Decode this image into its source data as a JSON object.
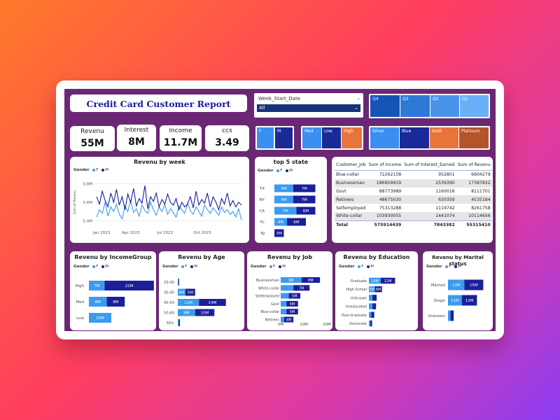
{
  "title": "Credit Card Customer Report",
  "kpis": [
    {
      "label": "Revenu",
      "value": "55M"
    },
    {
      "label": "Interest",
      "value": "8M"
    },
    {
      "label": "Income",
      "value": "11.7M"
    },
    {
      "label": "ccs",
      "value": "3.49"
    }
  ],
  "week_slicer": {
    "label": "Week_Start_Date",
    "selected": "All"
  },
  "quarters": [
    "Q4",
    "Q3",
    "Q2",
    "Q1"
  ],
  "gender_tiles": [
    "F",
    "M"
  ],
  "income_tiles": [
    "Med",
    "Low",
    "High"
  ],
  "card_tiles": [
    "Silver",
    "Blue",
    "Gold",
    "Platinum"
  ],
  "legend": {
    "label": "Gender",
    "f": "F",
    "m": "M"
  },
  "colors": {
    "f": "#3a9bef",
    "m": "#1b1f9a",
    "background": "#6a2773",
    "title": "#1a1b9e"
  },
  "chart_data": [
    {
      "id": "revenu_by_week",
      "type": "line",
      "title": "Revenu by week",
      "ylabel": "Sum of Revenu",
      "yticks": [
        "0.8M",
        "0.6M",
        "0.4M"
      ],
      "xticks": [
        "Jan 2023",
        "Apr 2023",
        "Jul 2023",
        "Oct 2023"
      ],
      "ylim": [
        0.35,
        0.85
      ],
      "series": [
        {
          "name": "F",
          "values": [
            0.44,
            0.52,
            0.48,
            0.6,
            0.45,
            0.55,
            0.5,
            0.58,
            0.47,
            0.42,
            0.56,
            0.5,
            0.62,
            0.49,
            0.53,
            0.45,
            0.57,
            0.51,
            0.48,
            0.6,
            0.52,
            0.46,
            0.55,
            0.5,
            0.58,
            0.47,
            0.53,
            0.49,
            0.44,
            0.56,
            0.52,
            0.48,
            0.59,
            0.51,
            0.47,
            0.55,
            0.5,
            0.45,
            0.57,
            0.52,
            0.48,
            0.54,
            0.5,
            0.46,
            0.55,
            0.49,
            0.52,
            0.47,
            0.5,
            0.44,
            0.53,
            0.41
          ]
        },
        {
          "name": "M",
          "values": [
            0.66,
            0.58,
            0.72,
            0.62,
            0.55,
            0.7,
            0.6,
            0.74,
            0.57,
            0.66,
            0.52,
            0.69,
            0.6,
            0.75,
            0.56,
            0.64,
            0.59,
            0.78,
            0.53,
            0.66,
            0.61,
            0.7,
            0.55,
            0.63,
            0.58,
            0.69,
            0.6,
            0.57,
            0.64,
            0.52,
            0.6,
            0.55,
            0.58,
            0.66,
            0.54,
            0.72,
            0.57,
            0.63,
            0.59,
            0.7,
            0.55,
            0.66,
            0.6,
            0.52,
            0.64,
            0.58,
            0.7,
            0.56,
            0.62,
            0.55,
            0.6,
            0.57
          ]
        }
      ]
    },
    {
      "id": "top5_state",
      "type": "bar",
      "title": "top 5 state",
      "categories": [
        "TX",
        "NY",
        "CA",
        "FL",
        "NJ"
      ],
      "series": [
        {
          "name": "F",
          "values": [
            6,
            6,
            7,
            4,
            0
          ]
        },
        {
          "name": "M",
          "values": [
            7,
            7,
            6,
            6,
            3
          ]
        }
      ],
      "labels": [
        [
          "6M",
          "7M"
        ],
        [
          "6M",
          "7M"
        ],
        [
          "7M",
          "6M"
        ],
        [
          "4M",
          "6M"
        ],
        [
          "",
          "3M"
        ]
      ]
    },
    {
      "id": "revenu_by_incomegroup",
      "type": "bar",
      "title": "Revenu by IncomeGroup",
      "categories": [
        "High",
        "Med",
        "Low"
      ],
      "series": [
        {
          "name": "F",
          "values": [
            7,
            8,
            10
          ]
        },
        {
          "name": "M",
          "values": [
            22,
            8,
            0
          ]
        }
      ],
      "labels": [
        [
          "7M",
          "22M"
        ],
        [
          "8M",
          "8M"
        ],
        [
          "10M",
          ""
        ]
      ]
    },
    {
      "id": "revenu_by_age",
      "type": "bar",
      "title": "Revenu by Age",
      "categories": [
        "20-30",
        "30-40",
        "40-50",
        "50-60",
        "60+"
      ],
      "series": [
        {
          "name": "F",
          "values": [
            0.3,
            4,
            11,
            9,
            0.5
          ]
        },
        {
          "name": "M",
          "values": [
            0.4,
            5,
            14,
            10,
            0.6
          ]
        }
      ],
      "labels": [
        [
          "",
          ""
        ],
        [
          "4M",
          "5M"
        ],
        [
          "11M",
          "14M"
        ],
        [
          "9M",
          "10M"
        ],
        [
          "",
          ""
        ]
      ]
    },
    {
      "id": "revenu_by_job",
      "type": "bar",
      "title": "Revenu by Job",
      "categories": [
        "Businessman",
        "White-collar",
        "Selfemployed",
        "Govt",
        "Blue-collar",
        "Retirees"
      ],
      "xticks": [
        "0M",
        "10M",
        "20M"
      ],
      "xlim": [
        0,
        20
      ],
      "series": [
        {
          "name": "F",
          "values": [
            9,
            5.5,
            3.5,
            2.5,
            2.5,
            1.5
          ]
        },
        {
          "name": "M",
          "values": [
            8,
            7,
            5,
            5,
            5,
            4
          ]
        }
      ],
      "labels": [
        [
          "9M",
          "8M"
        ],
        [
          "",
          "7M"
        ],
        [
          "",
          "5M"
        ],
        [
          "",
          "5M"
        ],
        [
          "",
          "5M"
        ],
        [
          "",
          "4M"
        ]
      ]
    },
    {
      "id": "revenu_by_education",
      "type": "bar",
      "title": "Revenu by Education",
      "categories": [
        "Graduate",
        "High School",
        "Unknown",
        "Uneducated",
        "Post-Graduate",
        "Doctorate"
      ],
      "series": [
        {
          "name": "F",
          "values": [
            10,
            5,
            3,
            3,
            2,
            1.2
          ]
        },
        {
          "name": "M",
          "values": [
            12,
            6,
            3.5,
            3,
            2.5,
            1.5
          ]
        }
      ],
      "labels": [
        [
          "10M",
          "12M"
        ],
        [
          "5M",
          "6M"
        ],
        [
          "",
          ""
        ],
        [
          "",
          ""
        ],
        [
          "",
          ""
        ],
        [
          "",
          ""
        ]
      ]
    },
    {
      "id": "revenu_by_marital_status",
      "type": "bar",
      "title": "Revenu by Marital status",
      "categories": [
        "Married",
        "Single",
        "Unknown"
      ],
      "series": [
        {
          "name": "F",
          "values": [
            13,
            11,
            2
          ]
        },
        {
          "name": "M",
          "values": [
            15,
            12,
            2.5
          ]
        }
      ],
      "labels": [
        [
          "13M",
          "15M"
        ],
        [
          "11M",
          "12M"
        ],
        [
          "",
          ""
        ]
      ]
    },
    {
      "id": "customer_job_table",
      "type": "table",
      "columns": [
        "Customer_Job",
        "Sum of Income",
        "Sum of Interest_Earned",
        "Sum of Revenu"
      ],
      "rows": [
        [
          "Blue-collar",
          "72262158",
          "952801",
          "6904279"
        ],
        [
          "Businessman",
          "186959919",
          "2539390",
          "17387832"
        ],
        [
          "Govt",
          "88773989",
          "1160016",
          "8111701"
        ],
        [
          "Retirees",
          "48675030",
          "630359",
          "4535184"
        ],
        [
          "Selfemployed",
          "75313288",
          "1119742",
          "8261758"
        ],
        [
          "White-collar",
          "103930055",
          "1441074",
          "10114656"
        ]
      ],
      "total": [
        "Total",
        "575914439",
        "7843382",
        "55315410"
      ]
    }
  ]
}
